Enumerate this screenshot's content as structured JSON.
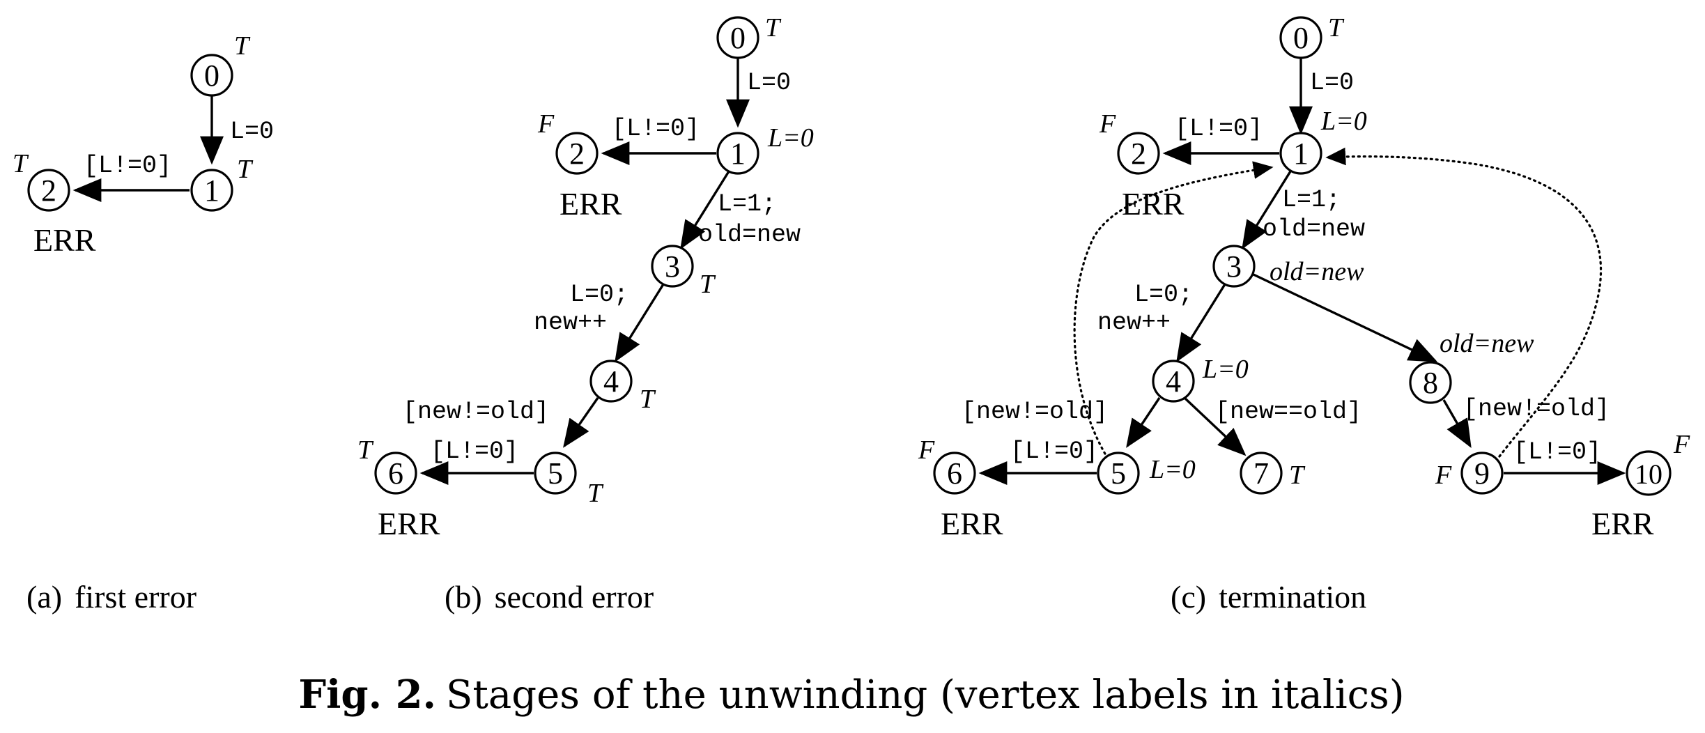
{
  "panels": {
    "a": {
      "caption_tag": "(a)",
      "caption_text": "first error",
      "nodes": [
        "0",
        "1",
        "2"
      ],
      "vertex_labels": {
        "n0": "T",
        "n1": "T",
        "n2": "T"
      },
      "edge_labels": {
        "e01": "L=0",
        "e12": "[L!=0]"
      },
      "err": "ERR"
    },
    "b": {
      "caption_tag": "(b)",
      "caption_text": "second error",
      "nodes": [
        "0",
        "1",
        "2",
        "3",
        "4",
        "5",
        "6"
      ],
      "vertex_labels": {
        "n0": "T",
        "n1": "L=0",
        "n2": "F",
        "n3": "T",
        "n4": "T",
        "n5": "T",
        "n6": "T"
      },
      "edge_labels": {
        "e01": "L=0",
        "e12": "[L!=0]",
        "e13_a": "L=1;",
        "e13_b": "old=new",
        "e34_a": "L=0;",
        "e34_b": "new++",
        "e45": "[new!=old]",
        "e56": "[L!=0]"
      },
      "err": [
        "ERR",
        "ERR"
      ]
    },
    "c": {
      "caption_tag": "(c)",
      "caption_text": "termination",
      "nodes": [
        "0",
        "1",
        "2",
        "3",
        "4",
        "5",
        "6",
        "7",
        "8",
        "9",
        "10"
      ],
      "vertex_labels": {
        "n0": "T",
        "n1": "L=0",
        "n2": "F",
        "n3": "old=new",
        "n4": "L=0",
        "n5": "L=0",
        "n6": "F",
        "n7": "T",
        "n8": "old=new",
        "n9": "F",
        "n10": "F"
      },
      "edge_labels": {
        "e01": "L=0",
        "e12": "[L!=0]",
        "e13_a": "L=1;",
        "e13_b": "old=new",
        "e34_a": "L=0;",
        "e34_b": "new++",
        "e45": "[new!=old]",
        "e47": "[new==old]",
        "e56": "[L!=0]",
        "e89": "[new!=old]",
        "e910": "[L!=0]"
      },
      "err": [
        "ERR",
        "ERR",
        "ERR"
      ]
    }
  },
  "figure_caption": {
    "label": "Fig. 2.",
    "text": "Stages of the unwinding (vertex labels in italics)"
  }
}
